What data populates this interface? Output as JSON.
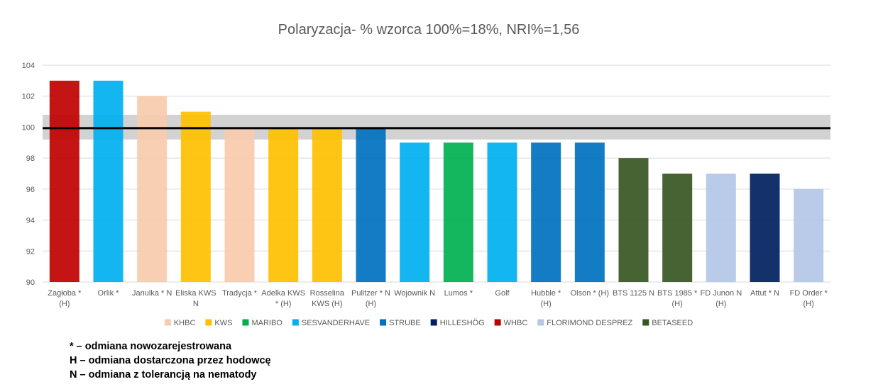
{
  "chart_data": {
    "type": "bar",
    "title": "Polaryzacja- % wzorca 100%=18%, NRI%=1,56",
    "ylim": [
      90,
      104
    ],
    "yticks": [
      90,
      92,
      94,
      96,
      98,
      100,
      102,
      104
    ],
    "grid": true,
    "reference_line": 100,
    "reference_band": [
      99.2,
      100.8
    ],
    "categories": [
      [
        "Zagłoba *",
        "(H)"
      ],
      [
        "Orlik *"
      ],
      [
        "Janulka * N"
      ],
      [
        "Eliska KWS",
        "N"
      ],
      [
        "Tradycja *"
      ],
      [
        "Adelka KWS",
        "* (H)"
      ],
      [
        "Rosselina",
        "KWS (H)"
      ],
      [
        "Pulitzer * N",
        "(H)"
      ],
      [
        "Wojownik N"
      ],
      [
        "Lumos *"
      ],
      [
        "Golf"
      ],
      [
        "Hubble *",
        "(H)"
      ],
      [
        "Olson * (H)"
      ],
      [
        "BTS 1125 N"
      ],
      [
        "BTS 1985 *",
        "(H)"
      ],
      [
        "FD Junon N",
        "(H)"
      ],
      [
        "Attut * N"
      ],
      [
        "FD Order *",
        "(H)"
      ]
    ],
    "values": [
      103,
      103,
      102,
      101,
      100,
      100,
      100,
      100,
      99,
      99,
      99,
      99,
      99,
      98,
      97,
      97,
      97,
      96
    ],
    "bar_breeders": [
      "WHBC",
      "SESVANDERHAVE",
      "KHBC",
      "KWS",
      "KHBC",
      "KWS",
      "KWS",
      "STRUBE",
      "SESVANDERHAVE",
      "MARIBO",
      "SESVANDERHAVE",
      "STRUBE",
      "STRUBE",
      "BETASEED",
      "BETASEED",
      "FLORIMOND DESPREZ",
      "HILLESHÖG",
      "FLORIMOND DESPREZ"
    ],
    "legend_position": "bottom",
    "legend": [
      {
        "name": "KHBC",
        "color": "#F8CBAD"
      },
      {
        "name": "KWS",
        "color": "#FFC000"
      },
      {
        "name": "MARIBO",
        "color": "#00B050"
      },
      {
        "name": "SESVANDERHAVE",
        "color": "#00B0F0"
      },
      {
        "name": "STRUBE",
        "color": "#0070C0"
      },
      {
        "name": "HILLESHÖG",
        "color": "#002060"
      },
      {
        "name": "WHBC",
        "color": "#C00000"
      },
      {
        "name": "FLORIMOND DESPREZ",
        "color": "#B4C7E7"
      },
      {
        "name": "BETASEED",
        "color": "#375623"
      }
    ]
  },
  "notes": [
    "* – odmiana nowozarejestrowana",
    "H – odmiana dostarczona przez hodowcę",
    "N – odmiana z tolerancją na nematody"
  ]
}
